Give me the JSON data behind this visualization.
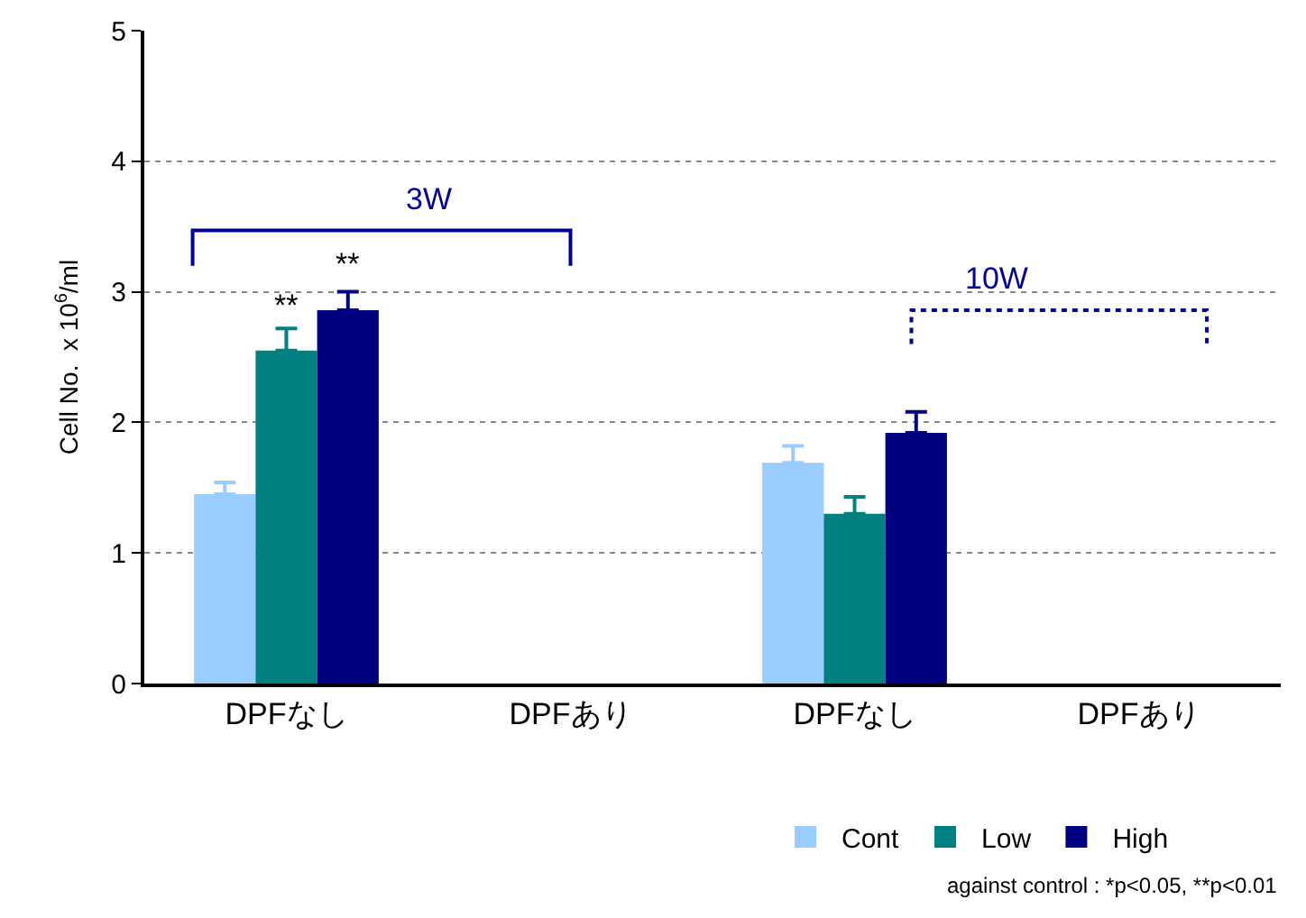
{
  "chart_data": {
    "type": "bar",
    "ylabel": "Cell No.  x 10$^{6}$/ml",
    "categories": [
      "DPFなし",
      "DPFあり",
      "DPFなし",
      "DPFあり"
    ],
    "series": [
      {
        "name": "Cont",
        "color": "#99ccff",
        "values": [
          1.45,
          null,
          1.69,
          null
        ],
        "errors": [
          [
            1.45,
            1.54
          ],
          null,
          [
            1.69,
            1.82
          ],
          null
        ]
      },
      {
        "name": "Low",
        "color": "#008080",
        "values": [
          2.55,
          null,
          1.3,
          null
        ],
        "errors": [
          [
            2.55,
            2.72
          ],
          null,
          [
            1.3,
            1.43
          ],
          null
        ]
      },
      {
        "name": "High",
        "color": "#000080",
        "values": [
          2.86,
          null,
          1.92,
          null
        ],
        "errors": [
          [
            2.86,
            3.0
          ],
          null,
          [
            1.92,
            2.08
          ],
          null
        ]
      }
    ],
    "ylim": [
      0,
      5
    ],
    "yticks": [
      0,
      1,
      2,
      3,
      4,
      5
    ],
    "grid": "y",
    "legend": "bottom",
    "annotations": [
      "3W",
      "10W",
      "**",
      "**",
      "against control : *p<0.05, **p<0.01"
    ]
  }
}
